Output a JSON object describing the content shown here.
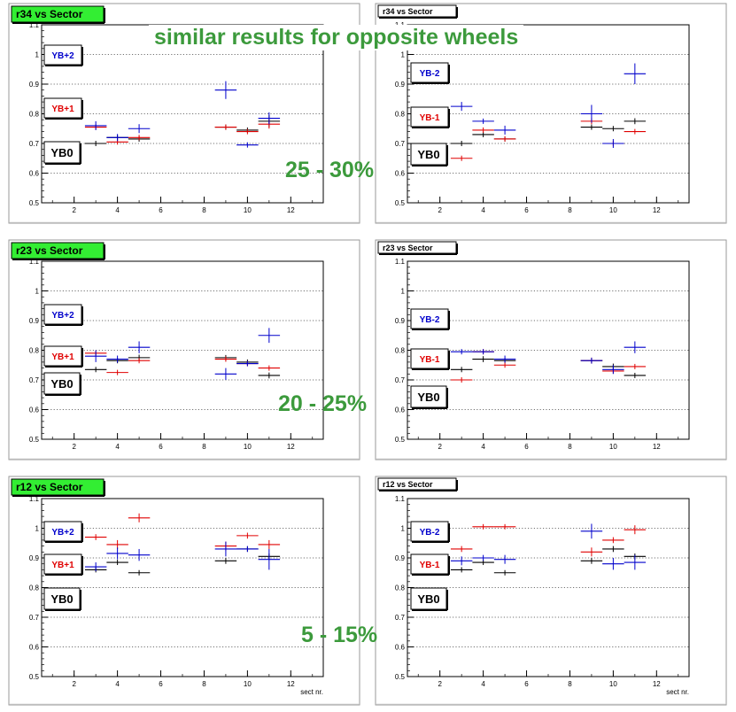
{
  "colors": {
    "black": "#000000",
    "red": "#e00000",
    "blue": "#0000cc",
    "green_title_bg": "#33ee33",
    "overlay_text": "#3c9a3c",
    "grid": "#555555",
    "frame": "#d8d8d8"
  },
  "headline": "similar results  for opposite wheels",
  "range_labels": [
    "25 - 30%",
    "20 - 25%",
    "5 - 15%"
  ],
  "chart_data": [
    {
      "type": "scatter",
      "title": "r34 vs Sector",
      "title_style": "green",
      "xlabel": "",
      "ylabel": "",
      "xlim": [
        0.5,
        13.5
      ],
      "ylim": [
        0.5,
        1.1
      ],
      "xticks": [
        2,
        4,
        6,
        8,
        10,
        12
      ],
      "yticks": [
        0.5,
        0.6,
        0.7,
        0.8,
        0.9,
        1,
        1.1
      ],
      "grid": "horizontal dotted",
      "legend": [
        {
          "label": "YB+2",
          "color": "blue"
        },
        {
          "label": "YB+1",
          "color": "red"
        },
        {
          "label": "YB0",
          "color": "black"
        }
      ],
      "series": [
        {
          "name": "YB0",
          "color": "black",
          "points": [
            [
              3,
              0.7,
              0.005
            ],
            [
              4,
              0.72,
              0.005
            ],
            [
              5,
              0.715,
              0.005
            ],
            [
              9,
              0.755,
              0.005
            ],
            [
              10,
              0.745,
              0.005
            ],
            [
              11,
              0.775,
              0.02
            ]
          ]
        },
        {
          "name": "YB+1",
          "color": "red",
          "points": [
            [
              3,
              0.755,
              0.008
            ],
            [
              4,
              0.705,
              0.005
            ],
            [
              5,
              0.72,
              0.005
            ],
            [
              9,
              0.755,
              0.008
            ],
            [
              10,
              0.74,
              0.008
            ],
            [
              11,
              0.765,
              0.015
            ]
          ]
        },
        {
          "name": "YB+2",
          "color": "blue",
          "points": [
            [
              3,
              0.76,
              0.015
            ],
            [
              4,
              0.72,
              0.012
            ],
            [
              5,
              0.75,
              0.015
            ],
            [
              9,
              0.88,
              0.03
            ],
            [
              10,
              0.695,
              0.005
            ],
            [
              11,
              0.785,
              0.02
            ]
          ]
        }
      ]
    },
    {
      "type": "scatter",
      "title": "r34 vs Sector",
      "title_style": "plain",
      "xlabel": "",
      "ylabel": "",
      "xlim": [
        0.5,
        13.5
      ],
      "ylim": [
        0.5,
        1.1
      ],
      "xticks": [
        2,
        4,
        6,
        8,
        10,
        12
      ],
      "yticks": [
        0.5,
        0.6,
        0.7,
        0.8,
        0.9,
        1,
        1.1
      ],
      "grid": "horizontal dotted",
      "legend": [
        {
          "label": "YB-2",
          "color": "blue"
        },
        {
          "label": "YB-1",
          "color": "red"
        },
        {
          "label": "YB0",
          "color": "black"
        }
      ],
      "series": [
        {
          "name": "YB0",
          "color": "black",
          "points": [
            [
              3,
              0.7,
              0.005
            ],
            [
              4,
              0.73,
              0.005
            ],
            [
              5,
              0.715,
              0.005
            ],
            [
              9,
              0.755,
              0.005
            ],
            [
              10,
              0.75,
              0.008
            ],
            [
              11,
              0.775,
              0.01
            ]
          ]
        },
        {
          "name": "YB-1",
          "color": "red",
          "points": [
            [
              3,
              0.65,
              0.005
            ],
            [
              4,
              0.745,
              0.005
            ],
            [
              5,
              0.715,
              0.005
            ],
            [
              9,
              0.775,
              0.01
            ],
            [
              10,
              0.7,
              0.005
            ],
            [
              11,
              0.74,
              0.008
            ]
          ]
        },
        {
          "name": "YB-2",
          "color": "blue",
          "points": [
            [
              3,
              0.825,
              0.015
            ],
            [
              4,
              0.775,
              0.008
            ],
            [
              5,
              0.745,
              0.015
            ],
            [
              9,
              0.8,
              0.03
            ],
            [
              10,
              0.7,
              0.015
            ],
            [
              11,
              0.935,
              0.035
            ]
          ]
        }
      ]
    },
    {
      "type": "scatter",
      "title": "r23 vs Sector",
      "title_style": "green",
      "xlabel": "",
      "ylabel": "",
      "xlim": [
        0.5,
        13.5
      ],
      "ylim": [
        0.5,
        1.1
      ],
      "xticks": [
        2,
        4,
        6,
        8,
        10,
        12
      ],
      "yticks": [
        0.5,
        0.6,
        0.7,
        0.8,
        0.9,
        1,
        1.1
      ],
      "ytick_labels": [
        "0.5",
        "0.6",
        "0.7",
        "0.8",
        "0.9",
        "1",
        "1.1"
      ],
      "grid": "horizontal dotted",
      "legend": [
        {
          "label": "YB+2",
          "color": "blue"
        },
        {
          "label": "YB+1",
          "color": "red"
        },
        {
          "label": "YB0",
          "color": "black"
        }
      ],
      "series": [
        {
          "name": "YB0",
          "color": "black",
          "points": [
            [
              3,
              0.735,
              0.005
            ],
            [
              4,
              0.765,
              0.005
            ],
            [
              5,
              0.775,
              0.01
            ],
            [
              9,
              0.775,
              0.008
            ],
            [
              10,
              0.76,
              0.005
            ],
            [
              11,
              0.715,
              0.01
            ]
          ]
        },
        {
          "name": "YB+1",
          "color": "red",
          "points": [
            [
              3,
              0.79,
              0.008
            ],
            [
              4,
              0.725,
              0.005
            ],
            [
              5,
              0.765,
              0.008
            ],
            [
              9,
              0.77,
              0.008
            ],
            [
              10,
              0.755,
              0.005
            ],
            [
              11,
              0.74,
              0.008
            ]
          ]
        },
        {
          "name": "YB+2",
          "color": "blue",
          "points": [
            [
              3,
              0.78,
              0.02
            ],
            [
              4,
              0.77,
              0.012
            ],
            [
              5,
              0.81,
              0.02
            ],
            [
              9,
              0.72,
              0.02
            ],
            [
              10,
              0.755,
              0.008
            ],
            [
              11,
              0.85,
              0.025
            ]
          ]
        }
      ]
    },
    {
      "type": "scatter",
      "title": "r23 vs Sector",
      "title_style": "plain",
      "xlabel": "",
      "ylabel": "",
      "xlim": [
        0.5,
        13.5
      ],
      "ylim": [
        0.5,
        1.1
      ],
      "xticks": [
        2,
        4,
        6,
        8,
        10,
        12
      ],
      "yticks": [
        0.5,
        0.6,
        0.7,
        0.8,
        0.9,
        1,
        1.1
      ],
      "grid": "horizontal dotted",
      "legend": [
        {
          "label": "YB-2",
          "color": "blue"
        },
        {
          "label": "YB-1",
          "color": "red"
        },
        {
          "label": "YB0",
          "color": "black"
        }
      ],
      "series": [
        {
          "name": "YB0",
          "color": "black",
          "points": [
            [
              3,
              0.735,
              0.005
            ],
            [
              4,
              0.77,
              0.01
            ],
            [
              5,
              0.765,
              0.008
            ],
            [
              9,
              0.765,
              0.008
            ],
            [
              10,
              0.745,
              0.01
            ],
            [
              11,
              0.715,
              0.008
            ]
          ]
        },
        {
          "name": "YB-1",
          "color": "red",
          "points": [
            [
              3,
              0.7,
              0.005
            ],
            [
              4,
              0.795,
              0.005
            ],
            [
              5,
              0.75,
              0.008
            ],
            [
              9,
              0.765,
              0.01
            ],
            [
              10,
              0.73,
              0.008
            ],
            [
              11,
              0.745,
              0.008
            ]
          ]
        },
        {
          "name": "YB-2",
          "color": "blue",
          "points": [
            [
              3,
              0.795,
              0.008
            ],
            [
              4,
              0.795,
              0.008
            ],
            [
              5,
              0.77,
              0.012
            ],
            [
              9,
              0.765,
              0.01
            ],
            [
              10,
              0.735,
              0.015
            ],
            [
              11,
              0.81,
              0.02
            ]
          ]
        }
      ]
    },
    {
      "type": "scatter",
      "title": "r12 vs Sector",
      "title_style": "green",
      "xlabel": "sect nr.",
      "ylabel": "",
      "xlim": [
        0.5,
        13.5
      ],
      "ylim": [
        0.5,
        1.1
      ],
      "xticks": [
        2,
        4,
        6,
        8,
        10,
        12
      ],
      "yticks": [
        0.5,
        0.6,
        0.7,
        0.8,
        0.9,
        1,
        1.1
      ],
      "grid": "horizontal dotted",
      "legend": [
        {
          "label": "YB+2",
          "color": "blue"
        },
        {
          "label": "YB+1",
          "color": "red"
        },
        {
          "label": "YB0",
          "color": "black"
        }
      ],
      "series": [
        {
          "name": "YB0",
          "color": "black",
          "points": [
            [
              3,
              0.86,
              0.008
            ],
            [
              4,
              0.885,
              0.008
            ],
            [
              5,
              0.85,
              0.008
            ],
            [
              9,
              0.89,
              0.01
            ],
            [
              10,
              0.93,
              0.008
            ],
            [
              11,
              0.905,
              0.01
            ]
          ]
        },
        {
          "name": "YB+1",
          "color": "red",
          "points": [
            [
              3,
              0.97,
              0.01
            ],
            [
              4,
              0.945,
              0.015
            ],
            [
              5,
              1.035,
              0.015
            ],
            [
              9,
              0.94,
              0.015
            ],
            [
              10,
              0.975,
              0.01
            ],
            [
              11,
              0.945,
              0.015
            ]
          ]
        },
        {
          "name": "YB+2",
          "color": "blue",
          "points": [
            [
              3,
              0.87,
              0.015
            ],
            [
              4,
              0.915,
              0.02
            ],
            [
              5,
              0.91,
              0.02
            ],
            [
              9,
              0.93,
              0.025
            ],
            [
              10,
              0.93,
              0.01
            ],
            [
              11,
              0.895,
              0.035
            ]
          ]
        }
      ]
    },
    {
      "type": "scatter",
      "title": "r12 vs Sector",
      "title_style": "plain",
      "xlabel": "sect nr.",
      "ylabel": "",
      "xlim": [
        0.5,
        13.5
      ],
      "ylim": [
        0.5,
        1.1
      ],
      "xticks": [
        2,
        4,
        6,
        8,
        10,
        12
      ],
      "yticks": [
        0.5,
        0.6,
        0.7,
        0.8,
        0.9,
        1,
        1.1
      ],
      "grid": "horizontal dotted",
      "legend": [
        {
          "label": "YB-2",
          "color": "blue"
        },
        {
          "label": "YB-1",
          "color": "red"
        },
        {
          "label": "YB0",
          "color": "black"
        }
      ],
      "series": [
        {
          "name": "YB0",
          "color": "black",
          "points": [
            [
              3,
              0.86,
              0.008
            ],
            [
              4,
              0.885,
              0.008
            ],
            [
              5,
              0.85,
              0.008
            ],
            [
              9,
              0.89,
              0.01
            ],
            [
              10,
              0.93,
              0.01
            ],
            [
              11,
              0.905,
              0.01
            ]
          ]
        },
        {
          "name": "YB-1",
          "color": "red",
          "points": [
            [
              3,
              0.93,
              0.01
            ],
            [
              4,
              1.005,
              0.005
            ],
            [
              5,
              1.005,
              0.005
            ],
            [
              9,
              0.92,
              0.015
            ],
            [
              10,
              0.96,
              0.01
            ],
            [
              11,
              0.995,
              0.015
            ]
          ]
        },
        {
          "name": "YB-2",
          "color": "blue",
          "points": [
            [
              3,
              0.89,
              0.015
            ],
            [
              4,
              0.9,
              0.01
            ],
            [
              5,
              0.895,
              0.015
            ],
            [
              9,
              0.99,
              0.025
            ],
            [
              10,
              0.88,
              0.02
            ],
            [
              11,
              0.885,
              0.025
            ]
          ]
        }
      ]
    }
  ]
}
